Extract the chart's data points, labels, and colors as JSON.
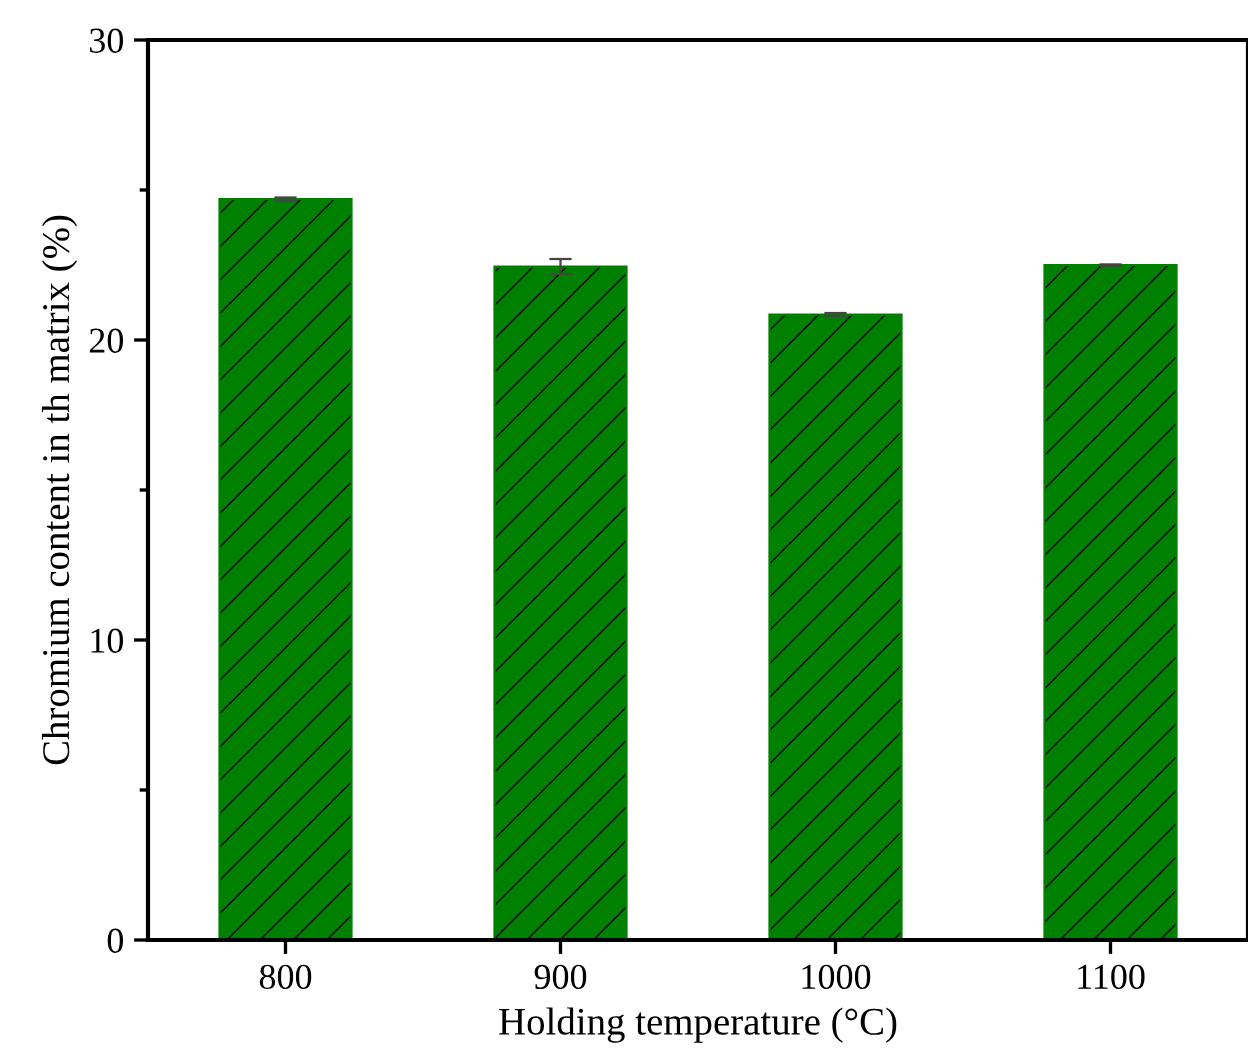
{
  "chart_data": {
    "type": "bar",
    "xlabel": "Holding temperature (°C)",
    "ylabel": "Chromium content in th matrix (%)",
    "categories": [
      "800",
      "900",
      "1000",
      "1100"
    ],
    "values": [
      24.7,
      22.45,
      20.85,
      22.5
    ],
    "errors": [
      0.05,
      0.25,
      0.05,
      0.02
    ],
    "color": "#008000",
    "ylim": [
      0,
      30
    ],
    "yticks": [
      0,
      10,
      20,
      30
    ],
    "grid": false
  }
}
